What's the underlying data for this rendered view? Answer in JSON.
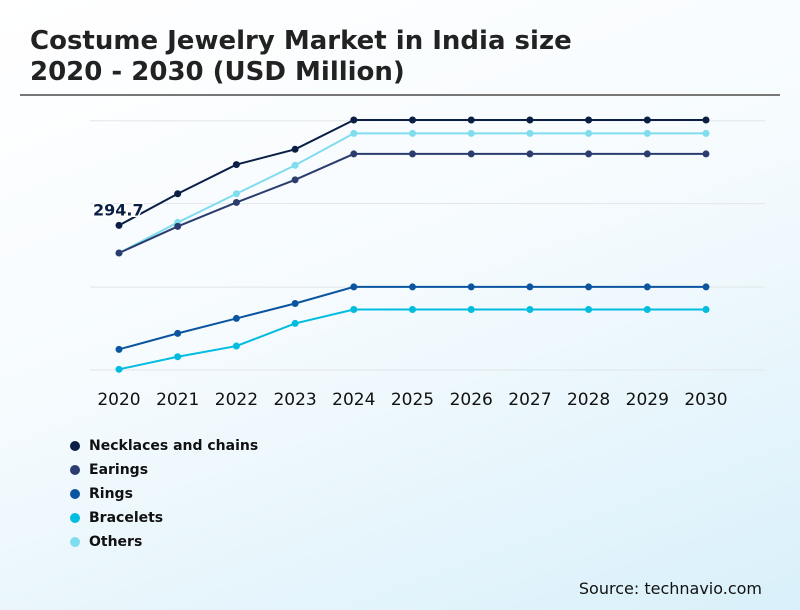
{
  "title_line1": "Costume Jewelry Market in India size",
  "title_line2": "2020 - 2030 (USD Million)",
  "source": "Source: technavio.com",
  "chart_data": {
    "type": "line",
    "title": "Costume Jewelry Market in India size 2020 - 2030 (USD Million)",
    "x": [
      "2020",
      "2021",
      "2022",
      "2023",
      "2024",
      "2025",
      "2026",
      "2027",
      "2028",
      "2029",
      "2030"
    ],
    "ylim": [
      0,
      508
    ],
    "grid": true,
    "gridlines": [
      0,
      169,
      339,
      508
    ],
    "legend_position": "bottom-left",
    "annotations": [
      {
        "series": "Necklaces and chains",
        "x": "2020",
        "label": "294.7"
      }
    ],
    "series": [
      {
        "name": "Necklaces and chains",
        "color": "#0b1f45",
        "values": [
          294.7,
          359.1,
          418.6,
          449.7,
          509.4,
          509.4,
          509.4,
          509.4,
          509.4,
          509.4,
          509.4
        ]
      },
      {
        "name": "Earings",
        "color": "#2b3d6f",
        "values": [
          238.4,
          292.6,
          341.4,
          387.5,
          440.3,
          440.3,
          440.3,
          440.3,
          440.3,
          440.3,
          440.3
        ]
      },
      {
        "name": "Rings",
        "color": "#0b55a0",
        "values": [
          42.1,
          74.6,
          105.1,
          135.5,
          169.3,
          169.3,
          169.3,
          169.3,
          169.3,
          169.3,
          169.3
        ]
      },
      {
        "name": "Bracelets",
        "color": "#00bde0",
        "values": [
          1.4,
          27.0,
          48.8,
          94.9,
          123.3,
          123.3,
          123.3,
          123.3,
          123.3,
          123.3,
          123.3
        ]
      },
      {
        "name": "Others",
        "color": "#80dcef",
        "values": [
          238.4,
          300.7,
          359.1,
          417.2,
          482.2,
          482.2,
          482.2,
          482.2,
          482.2,
          482.2,
          482.2
        ]
      }
    ]
  }
}
